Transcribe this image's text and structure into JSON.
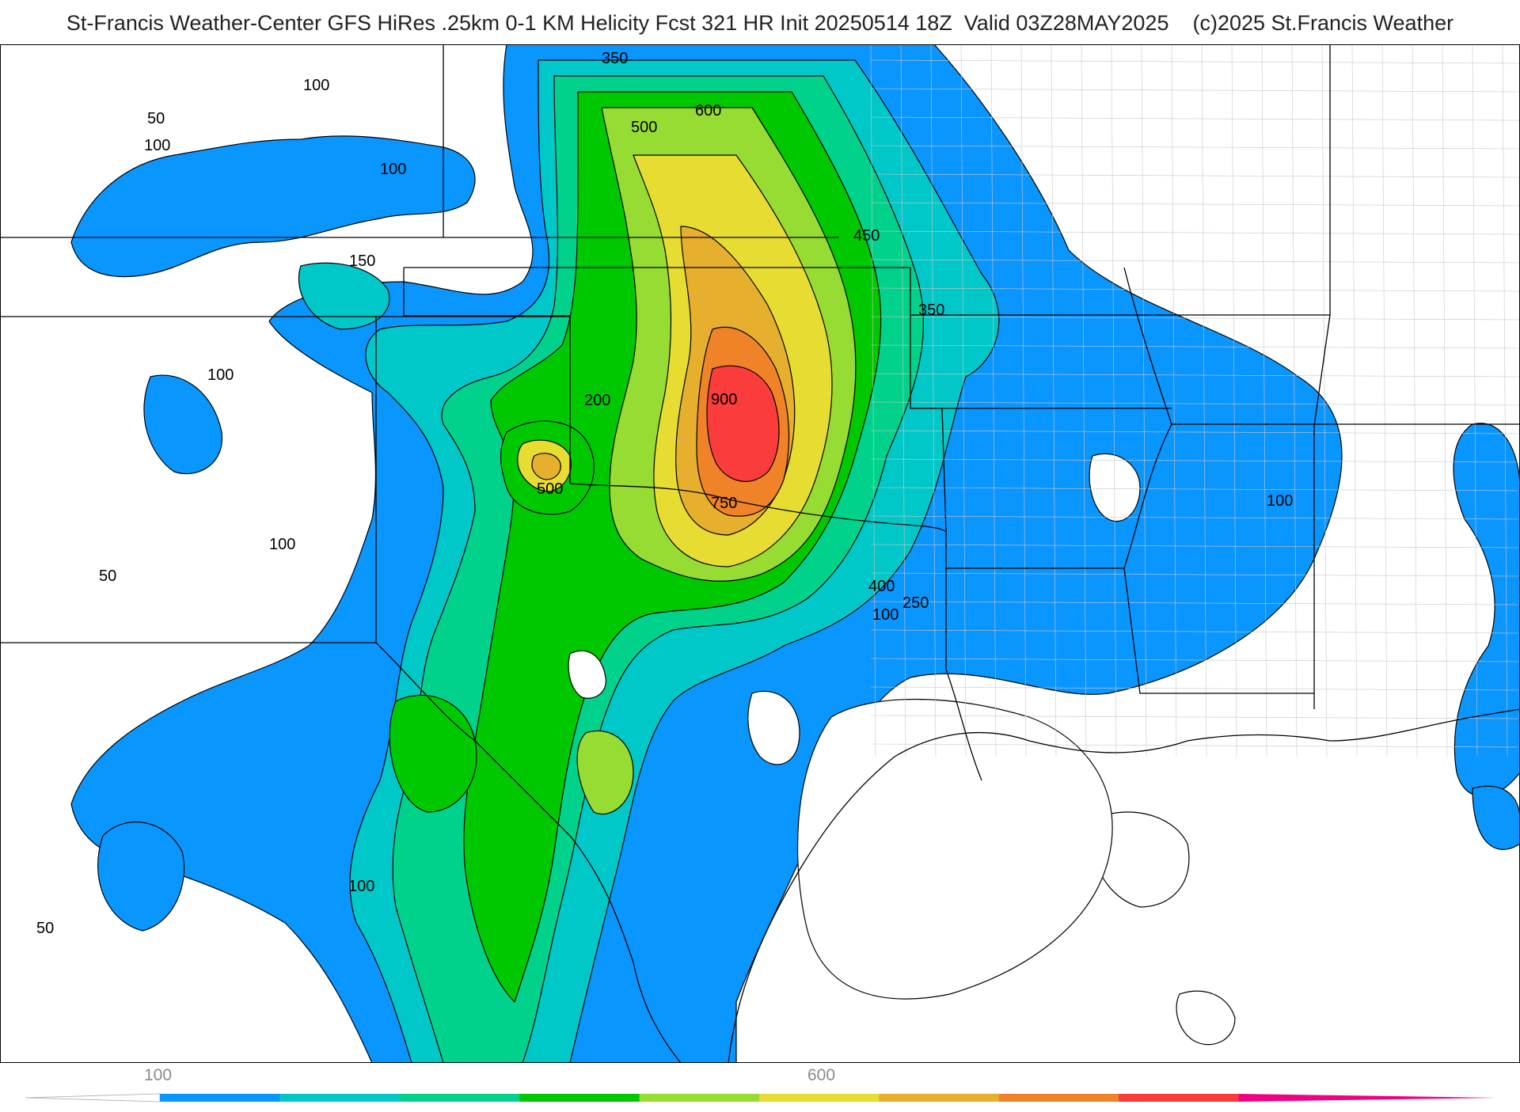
{
  "header": {
    "title": "St-Francis Weather-Center GFS HiRes .25km 0-1 KM Helicity Fcst 321 HR Init 20250514 18Z  Valid 03Z28MAY2025    (c)2025 St.Francis Weather"
  },
  "map": {
    "region": "South-Central United States",
    "fill_colors": [
      "#0a96ff",
      "#00c8c8",
      "#00d28c",
      "#00c800",
      "#96dc32",
      "#e6dc32",
      "#e6af2d",
      "#f08228",
      "#fa3c3c",
      "#f00082"
    ],
    "background_color": "#ffffff",
    "boundary_color": "#000000",
    "county_line_color": "#c8c8c8",
    "contour_labels": [
      {
        "id": "lbl-350-top",
        "text": "350"
      },
      {
        "id": "lbl-100-nw",
        "text": "100"
      },
      {
        "id": "lbl-50-nw",
        "text": "50"
      },
      {
        "id": "lbl-100-nw2",
        "text": "100"
      },
      {
        "id": "lbl-100-nw3",
        "text": "100"
      },
      {
        "id": "lbl-600",
        "text": "600"
      },
      {
        "id": "lbl-500-top",
        "text": "500"
      },
      {
        "id": "lbl-450",
        "text": "450"
      },
      {
        "id": "lbl-150",
        "text": "150"
      },
      {
        "id": "lbl-350-e",
        "text": "350"
      },
      {
        "id": "lbl-100-w",
        "text": "100"
      },
      {
        "id": "lbl-200",
        "text": "200"
      },
      {
        "id": "lbl-900",
        "text": "900"
      },
      {
        "id": "lbl-500-c",
        "text": "500"
      },
      {
        "id": "lbl-750",
        "text": "750"
      },
      {
        "id": "lbl-100-e",
        "text": "100"
      },
      {
        "id": "lbl-100-sw",
        "text": "100"
      },
      {
        "id": "lbl-50-sw",
        "text": "50"
      },
      {
        "id": "lbl-400",
        "text": "400"
      },
      {
        "id": "lbl-250",
        "text": "250"
      },
      {
        "id": "lbl-100-s",
        "text": "100"
      },
      {
        "id": "lbl-100-ssw",
        "text": "100"
      },
      {
        "id": "lbl-50-s",
        "text": "50"
      }
    ]
  },
  "colorbar": {
    "ticks": [
      {
        "id": "cb-100",
        "text": "100"
      },
      {
        "id": "cb-600",
        "text": "600"
      }
    ],
    "colors": [
      "#ffffff",
      "#0a96ff",
      "#00c8c8",
      "#00d28c",
      "#00c800",
      "#96dc32",
      "#e6dc32",
      "#e6af2d",
      "#f08228",
      "#fa3c3c",
      "#f00082"
    ]
  }
}
